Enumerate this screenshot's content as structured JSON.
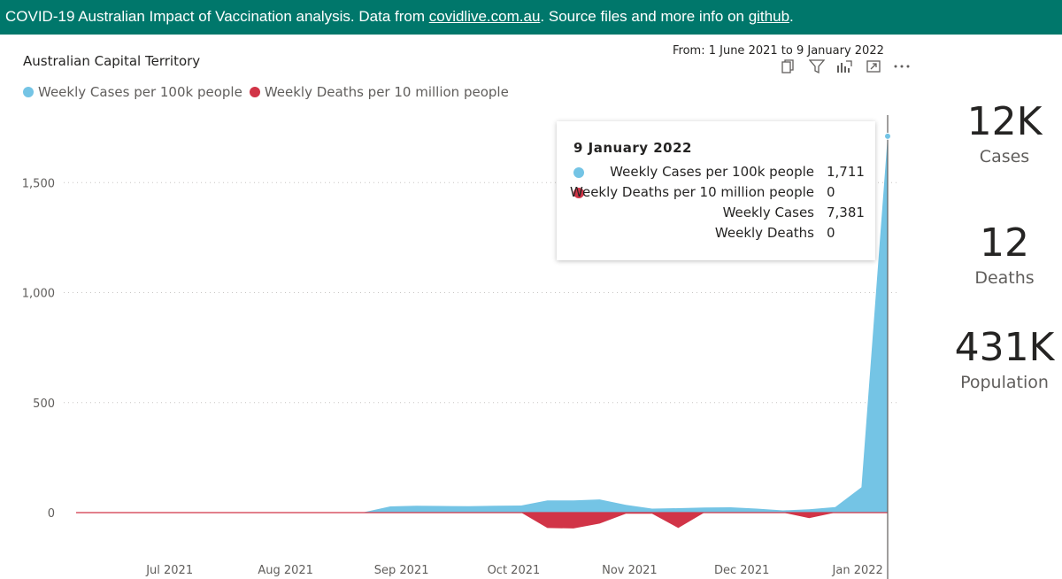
{
  "banner": {
    "prefix": "COVID-19 Australian Impact of Vaccination analysis. Data from ",
    "link1": "covidlive.com.au",
    "middle": ". Source files and more info on ",
    "link2": "github",
    "suffix": "."
  },
  "chart_title": "Australian Capital Territory",
  "date_range": "From: 1 June 2021 to 9 January 2022",
  "legend": [
    {
      "label": "Weekly Cases per 100k people",
      "color": "#74c4e5"
    },
    {
      "label": "Weekly Deaths per 10 million people",
      "color": "#d13447"
    }
  ],
  "tooltip": {
    "title": "9 January 2022",
    "rows": [
      {
        "label": "Weekly Cases per 100k people",
        "value": "1,711",
        "color": "#74c4e5"
      },
      {
        "label": "Weekly Deaths per 10 million people",
        "value": "0",
        "color": "#d13447"
      },
      {
        "label": "Weekly Cases",
        "value": "7,381"
      },
      {
        "label": "Weekly Deaths",
        "value": "0"
      }
    ]
  },
  "kpis": [
    {
      "value": "12K",
      "caption": "Cases"
    },
    {
      "value": "12",
      "caption": "Deaths"
    },
    {
      "value": "431K",
      "caption": "Population"
    }
  ],
  "chart_data": {
    "type": "area",
    "x": [
      "2021-06-06",
      "2021-06-13",
      "2021-06-20",
      "2021-06-27",
      "2021-07-04",
      "2021-07-11",
      "2021-07-18",
      "2021-07-25",
      "2021-08-01",
      "2021-08-08",
      "2021-08-15",
      "2021-08-22",
      "2021-08-29",
      "2021-09-05",
      "2021-09-12",
      "2021-09-19",
      "2021-09-26",
      "2021-10-03",
      "2021-10-10",
      "2021-10-17",
      "2021-10-24",
      "2021-10-31",
      "2021-11-07",
      "2021-11-14",
      "2021-11-21",
      "2021-11-28",
      "2021-12-05",
      "2021-12-12",
      "2021-12-19",
      "2021-12-26",
      "2022-01-02",
      "2022-01-09"
    ],
    "series": [
      {
        "name": "Weekly Cases per 100k people",
        "color": "#74c4e5",
        "values": [
          0,
          0,
          0,
          0,
          0,
          0,
          0,
          0,
          0,
          0,
          0,
          2,
          28,
          31,
          30,
          29,
          31,
          32,
          55,
          55,
          60,
          35,
          18,
          20,
          23,
          24,
          18,
          10,
          15,
          25,
          115,
          1711
        ]
      },
      {
        "name": "Weekly Deaths per 10 million people",
        "color": "#d13447",
        "values": [
          0,
          0,
          0,
          0,
          0,
          0,
          0,
          0,
          0,
          0,
          0,
          0,
          0,
          0,
          0,
          0,
          0,
          0,
          -70,
          -72,
          -50,
          -5,
          -5,
          -70,
          0,
          0,
          0,
          0,
          -25,
          0,
          0,
          0
        ]
      }
    ],
    "xticks": [
      {
        "date": "2021-07-01",
        "label": "Jul 2021"
      },
      {
        "date": "2021-08-01",
        "label": "Aug 2021"
      },
      {
        "date": "2021-09-01",
        "label": "Sep 2021"
      },
      {
        "date": "2021-10-01",
        "label": "Oct 2021"
      },
      {
        "date": "2021-11-01",
        "label": "Nov 2021"
      },
      {
        "date": "2021-12-01",
        "label": "Dec 2021"
      },
      {
        "date": "2022-01-01",
        "label": "Jan 2022"
      }
    ],
    "yticks": [
      {
        "value": 0,
        "label": "0"
      },
      {
        "value": 500,
        "label": "500"
      },
      {
        "value": 1000,
        "label": "1,000"
      },
      {
        "value": 1500,
        "label": "1,500"
      }
    ],
    "ylim": [
      -300,
      1800
    ],
    "highlight_date": "2022-01-09",
    "grid": true
  }
}
